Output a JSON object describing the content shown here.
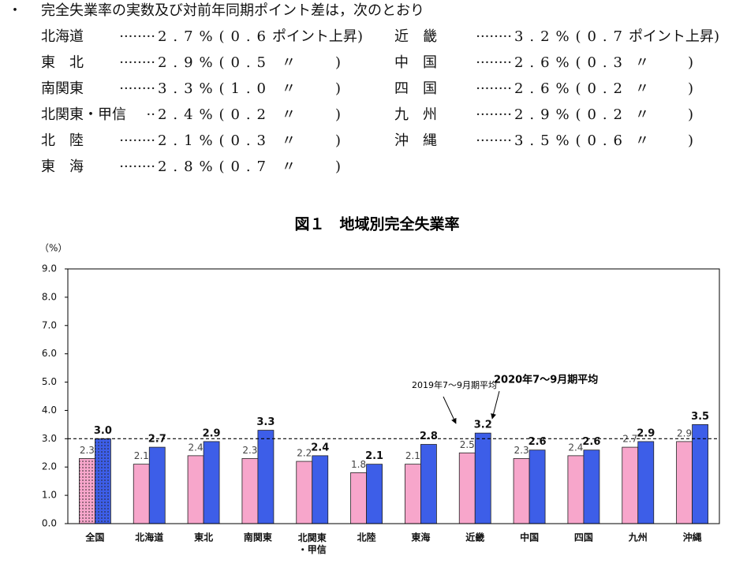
{
  "list": {
    "bullet": "・",
    "heading": "完全失業率の実数及び対前年同期ポイント差は，次のとおり",
    "left": [
      {
        "region": "北海道",
        "leader": "········",
        "figure": "2.7%(0.6",
        "note": "ポイント上昇",
        "close": ")"
      },
      {
        "region": "東　北",
        "leader": "········",
        "figure": "2.9%(0.5",
        "note": "〃",
        "close": ")"
      },
      {
        "region": "南関東",
        "leader": "········",
        "figure": "3.3%(1.0",
        "note": "〃",
        "close": ")"
      },
      {
        "region": "北関東・甲信",
        "leader": "··",
        "figure": "2.4%(0.2",
        "note": "〃",
        "close": ")"
      },
      {
        "region": "北　陸",
        "leader": "········",
        "figure": "2.1%(0.3",
        "note": "〃",
        "close": ")"
      },
      {
        "region": "東　海",
        "leader": "········",
        "figure": "2.8%(0.7",
        "note": "〃",
        "close": ")"
      }
    ],
    "right": [
      {
        "region": "近　畿",
        "leader": "········",
        "figure": "3.2%(0.7",
        "note": "ポイント上昇",
        "close": ")"
      },
      {
        "region": "中　国",
        "leader": "········",
        "figure": "2.6%(0.3",
        "note": "〃",
        "close": ")"
      },
      {
        "region": "四　国",
        "leader": "········",
        "figure": "2.6%(0.2",
        "note": "〃",
        "close": ")"
      },
      {
        "region": "九　州",
        "leader": "········",
        "figure": "2.9%(0.2",
        "note": "〃",
        "close": ")"
      },
      {
        "region": "沖　縄",
        "leader": "········",
        "figure": "3.5%(0.6",
        "note": "〃",
        "close": ")"
      }
    ]
  },
  "chart_data": {
    "type": "bar",
    "title": "図１　地域別完全失業率",
    "y_unit": "（%）",
    "categories": [
      "全国",
      "北海道",
      "東北",
      "南関東",
      "北関東\n・甲信",
      "北陸",
      "東海",
      "近畿",
      "中国",
      "四国",
      "九州",
      "沖縄"
    ],
    "series": [
      {
        "name": "2019年7～9月期平均",
        "color": "#f7a6cb",
        "values": [
          2.3,
          2.1,
          2.4,
          2.3,
          2.2,
          1.8,
          2.1,
          2.5,
          2.3,
          2.4,
          2.7,
          2.9
        ],
        "value_labels": [
          "2.3",
          "2.1",
          "2.4",
          "2.3",
          "2.2",
          "1.8",
          "2.1",
          "2.5",
          "2.3",
          "2.4",
          "2.7",
          "2.9"
        ]
      },
      {
        "name": "2020年7～9月期平均",
        "color": "#3d5ee8",
        "values": [
          3.0,
          2.7,
          2.9,
          3.3,
          2.4,
          2.1,
          2.8,
          3.2,
          2.6,
          2.6,
          2.9,
          3.5
        ],
        "value_labels": [
          "3.0",
          "2.7",
          "2.9",
          "3.3",
          "2.4",
          "2.1",
          "2.8",
          "3.2",
          "2.6",
          "2.6",
          "2.9",
          "3.5"
        ]
      }
    ],
    "reference_value": 3.0,
    "ylim": [
      0,
      9
    ],
    "yticks": [
      {
        "value": 0,
        "label": "0.0"
      },
      {
        "value": 1,
        "label": "1.0"
      },
      {
        "value": 2,
        "label": "2.0"
      },
      {
        "value": 3,
        "label": "3.0"
      },
      {
        "value": 4,
        "label": "4.0"
      },
      {
        "value": 5,
        "label": "5.0"
      },
      {
        "value": 6,
        "label": "6.0"
      },
      {
        "value": 7,
        "label": "7.0"
      },
      {
        "value": 8,
        "label": "8.0"
      },
      {
        "value": 9,
        "label": "9.0"
      }
    ],
    "grid": false
  }
}
